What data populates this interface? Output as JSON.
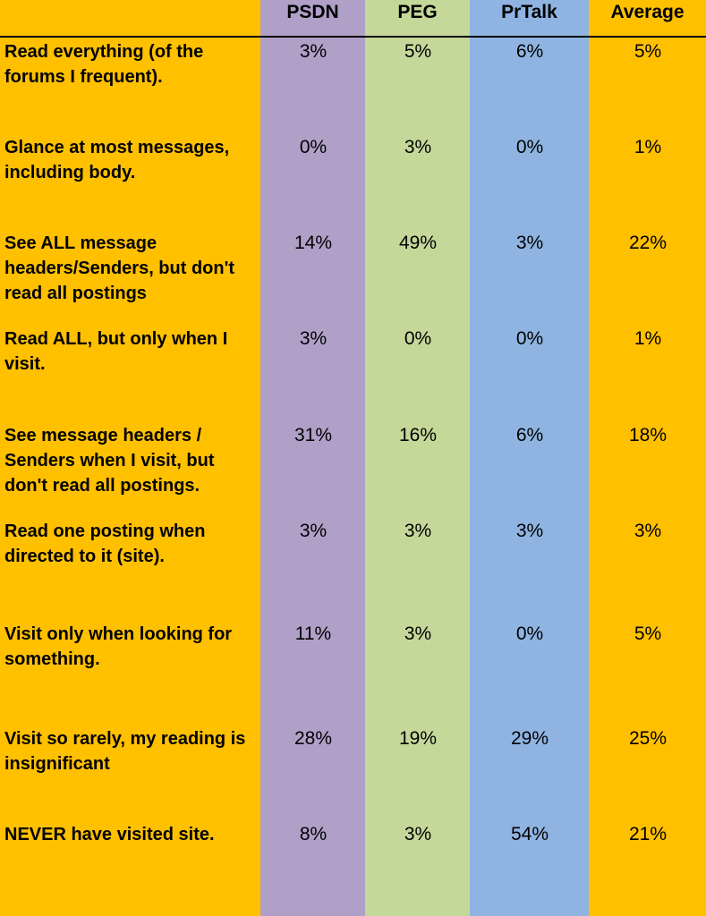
{
  "colors": {
    "label_column": "#FFC000",
    "psdn": "#B0A0C8",
    "peg": "#C4D89A",
    "prtalk": "#8FB4E2",
    "average": "#FFC000",
    "rule": "#000000"
  },
  "chart_data": {
    "type": "table",
    "columns": [
      "PSDN",
      "PEG",
      "PrTalk",
      "Average"
    ],
    "rows": [
      {
        "label": "Read everything (of the forums I frequent).",
        "values": [
          "3%",
          "5%",
          "6%",
          "5%"
        ]
      },
      {
        "label": "Glance at most messages, including body.",
        "values": [
          "0%",
          "3%",
          "0%",
          "1%"
        ]
      },
      {
        "label": "See ALL message headers/Senders, but don't read all postings",
        "values": [
          "14%",
          "49%",
          "3%",
          "22%"
        ]
      },
      {
        "label": "Read ALL, but only when I visit.",
        "values": [
          "3%",
          "0%",
          "0%",
          "1%"
        ]
      },
      {
        "label": "See message headers / Senders when I visit, but don't read all postings.",
        "values": [
          "31%",
          "16%",
          "6%",
          "18%"
        ]
      },
      {
        "label": "Read one posting when directed to it (site).",
        "values": [
          "3%",
          "3%",
          "3%",
          "3%"
        ]
      },
      {
        "label": "Visit only when looking for something.",
        "values": [
          "11%",
          "3%",
          "0%",
          "5%"
        ]
      },
      {
        "label": "Visit so rarely, my reading is insignificant",
        "values": [
          "28%",
          "19%",
          "29%",
          "25%"
        ]
      },
      {
        "label": "NEVER have visited site.",
        "values": [
          "8%",
          "3%",
          "54%",
          "21%"
        ]
      }
    ]
  }
}
